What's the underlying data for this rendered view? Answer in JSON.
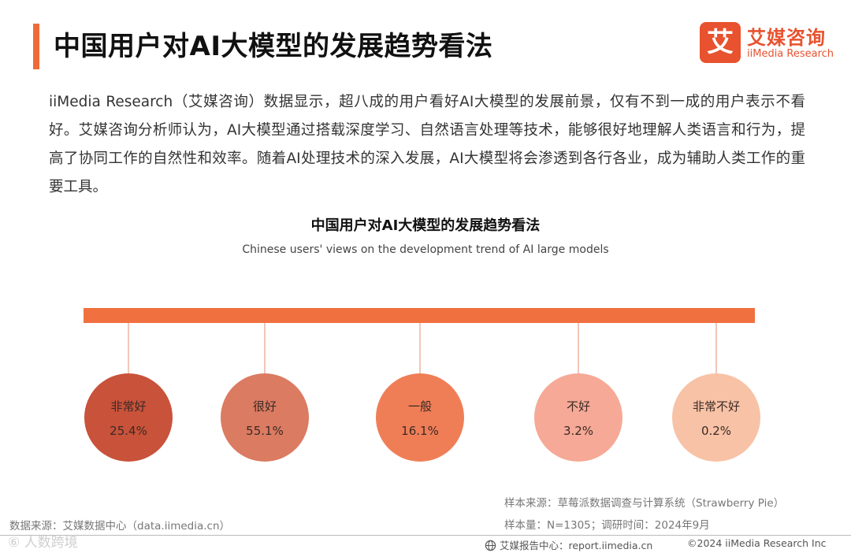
{
  "header": {
    "title": "中国用户对AI大模型的发展趋势看法"
  },
  "logo": {
    "mark": "艾",
    "name_cn": "艾媒咨询",
    "name_en": "iiMedia Research"
  },
  "intro": {
    "text": "iiMedia Research（艾媒咨询）数据显示，超八成的用户看好AI大模型的发展前景，仅有不到一成的用户表示不看好。艾媒咨询分析师认为，AI大模型通过搭载深度学习、自然语言处理等技术，能够很好地理解人类语言和行为，提高了协同工作的自然性和效率。随着AI处理技术的深入发展，AI大模型将会渗透到各行各业，成为辅助人类工作的重要工具。"
  },
  "chart_data": {
    "type": "bubble",
    "title": "中国用户对AI大模型的发展趋势看法",
    "subtitle": "Chinese users' views on the development trend of AI large models",
    "categories": [
      "非常好",
      "很好",
      "一般",
      "不好",
      "非常不好"
    ],
    "values": [
      25.4,
      55.1,
      16.1,
      3.2,
      0.2
    ],
    "value_labels": [
      "25.4%",
      "55.1%",
      "16.1%",
      "3.2%",
      "0.2%"
    ],
    "unit": "%",
    "colors": [
      "#c9523a",
      "#db7b62",
      "#ef7e57",
      "#f6a996",
      "#f8c2a6"
    ],
    "bar_color": "#f07040",
    "connector_color": "#e8a08a"
  },
  "sources": {
    "sample_source": "样本来源：草莓派数据调查与计算系统（Strawberry Pie）",
    "sample_size": "样本量：N=1305；调研时间：2024年9月",
    "data_source": "数据来源：艾媒数据中心（data.iimedia.cn）"
  },
  "watermark": "⑥ 人数跨境",
  "footer": {
    "center": "艾媒报告中心：report.iimedia.cn",
    "copyright": "©2024 iiMedia Research Inc"
  }
}
